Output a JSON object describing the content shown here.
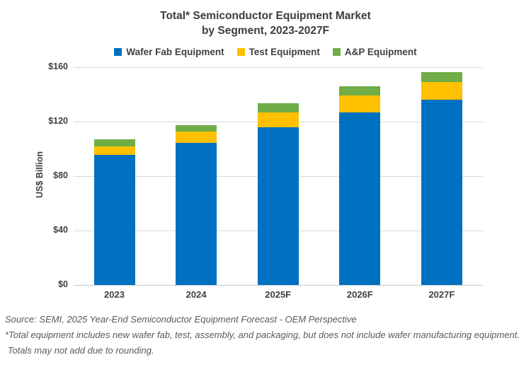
{
  "title": {
    "line1": "Total* Semiconductor Equipment Market",
    "line2": "by Segment, 2023-2027F"
  },
  "legend": {
    "items": [
      {
        "label": "Wafer Fab Equipment",
        "color": "#0070C0"
      },
      {
        "label": "Test Equipment",
        "color": "#FFC000"
      },
      {
        "label": "A&P Equipment",
        "color": "#70AD47"
      }
    ]
  },
  "y_axis": {
    "label": "US$ Billion",
    "ticks": [
      "$160",
      "$120",
      "$80",
      "$40",
      "$0"
    ],
    "max": 160,
    "step": 40
  },
  "footnotes": [
    "Source: SEMI, 2025 Year-End Semiconductor Equipment Forecast - OEM Perspective",
    "*Total equipment includes new wafer fab, test, assembly, and packaging, but does not include wafer manufacturing equipment.",
    " Totals may not add due to rounding."
  ],
  "chart_data": {
    "type": "bar",
    "stacked": true,
    "title": "Total* Semiconductor Equipment Market by Segment, 2023-2027F",
    "categories": [
      "2023",
      "2024",
      "2025F",
      "2026F",
      "2027F"
    ],
    "series": [
      {
        "name": "Wafer Fab Equipment",
        "color": "#0070C0",
        "values": [
          95.5,
          104.5,
          116.0,
          126.5,
          136.0
        ]
      },
      {
        "name": "Test Equipment",
        "color": "#FFC000",
        "values": [
          6.5,
          8.0,
          10.5,
          12.5,
          13.0
        ]
      },
      {
        "name": "A&P Equipment",
        "color": "#70AD47",
        "values": [
          5.0,
          5.0,
          7.0,
          7.0,
          7.5
        ]
      }
    ],
    "xlabel": "",
    "ylabel": "US$ Billion",
    "ylim": [
      0,
      160
    ],
    "grid": true,
    "legend_position": "top"
  }
}
